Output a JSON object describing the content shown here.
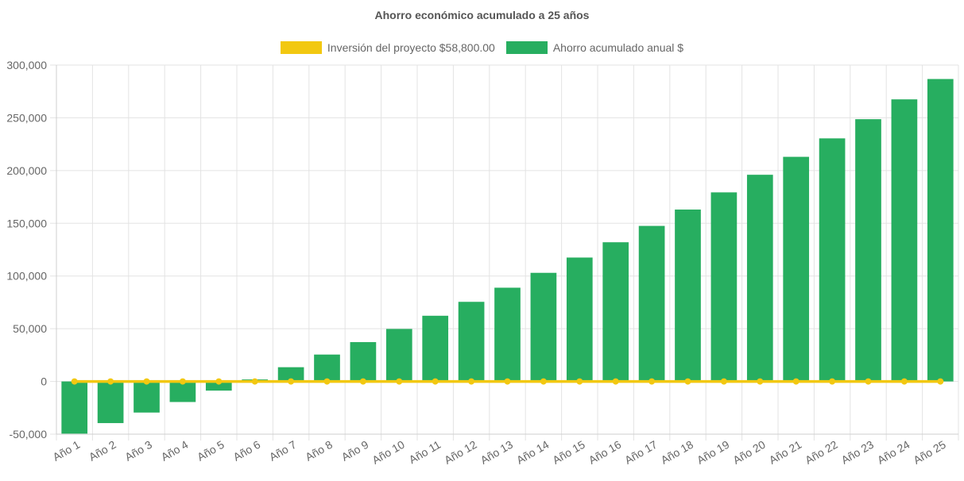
{
  "chart_data": {
    "type": "bar",
    "title": "Ahorro económico acumulado a 25 años",
    "categories": [
      "Año 1",
      "Año 2",
      "Año 3",
      "Año 4",
      "Año 5",
      "Año 6",
      "Año 7",
      "Año 8",
      "Año 9",
      "Año 10",
      "Año 11",
      "Año 12",
      "Año 13",
      "Año 14",
      "Año 15",
      "Año 16",
      "Año 17",
      "Año 18",
      "Año 19",
      "Año 20",
      "Año 21",
      "Año 22",
      "Año 23",
      "Año 24",
      "Año 25"
    ],
    "series": [
      {
        "name": "Inversión del proyecto $58,800.00",
        "type": "line",
        "color": "#f2c811",
        "values": [
          0,
          0,
          0,
          0,
          0,
          0,
          0,
          0,
          0,
          0,
          0,
          0,
          0,
          0,
          0,
          0,
          0,
          0,
          0,
          0,
          0,
          0,
          0,
          0,
          0
        ]
      },
      {
        "name": "Ahorro acumulado anual $",
        "type": "bar",
        "color": "#27ae60",
        "values": [
          -49500,
          -39500,
          -29500,
          -19500,
          -8700,
          1900,
          13500,
          25500,
          37300,
          49800,
          62300,
          75500,
          88900,
          103000,
          117500,
          132000,
          147500,
          163000,
          179300,
          196000,
          213000,
          230500,
          248700,
          267500,
          286800
        ]
      }
    ],
    "y_ticks": [
      "300,000",
      "250,000",
      "200,000",
      "150,000",
      "100,000",
      "50,000",
      "0",
      "-50,000"
    ],
    "ylim": [
      -50000,
      300000
    ],
    "grid": true,
    "legend_position": "top"
  }
}
